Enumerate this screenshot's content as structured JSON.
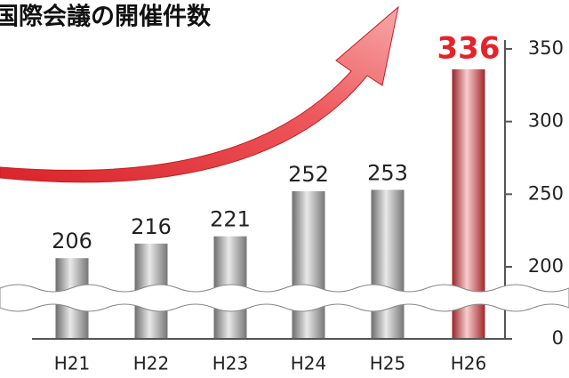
{
  "chart_data": {
    "type": "bar",
    "title": "国際会議の開催件数",
    "categories": [
      "H21",
      "H22",
      "H23",
      "H24",
      "H25",
      "H26"
    ],
    "values": [
      206,
      216,
      221,
      252,
      253,
      336
    ],
    "colors": [
      "#a8a8a8",
      "#a8a8a8",
      "#a8a8a8",
      "#a8a8a8",
      "#a8a8a8",
      "#e8383d"
    ],
    "value_label_colors": [
      "#222222",
      "#222222",
      "#222222",
      "#222222",
      "#222222",
      "#e4242a"
    ],
    "ylim": [
      0,
      350
    ],
    "yticks": [
      0,
      200,
      250,
      300,
      350
    ],
    "y_break": [
      0,
      200
    ],
    "axis_position": "right"
  }
}
